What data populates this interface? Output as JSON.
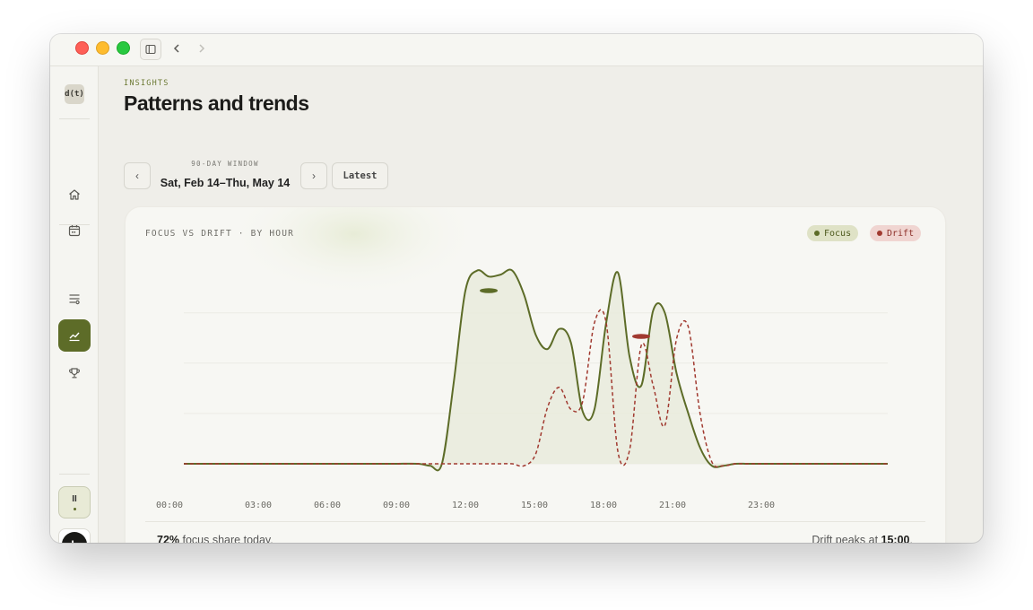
{
  "window": {
    "controls": [
      "close",
      "minimize",
      "zoom"
    ],
    "toolbar_icons": [
      "sidebar-toggle-icon",
      "back-chevron-icon",
      "forward-chevron-icon"
    ]
  },
  "sidebar": {
    "logo": "d(t)",
    "items": [
      {
        "icon": "home-icon",
        "active": false
      },
      {
        "icon": "calendar-icon",
        "active": false
      },
      {
        "icon": "filters-icon",
        "active": false
      },
      {
        "icon": "trend-chart-icon",
        "active": true
      },
      {
        "icon": "trophy-icon",
        "active": false
      }
    ],
    "pause_label": "II",
    "avatar_initial": "L"
  },
  "header": {
    "eyebrow": "INSIGHTS",
    "title": "Patterns and trends",
    "range_caption": "90-DAY WINDOW",
    "range_value": "Sat, Feb 14–Thu, May 14",
    "prev_label": "‹",
    "next_label": "›",
    "latest_label": "Latest"
  },
  "card": {
    "title": "FOCUS VS DRIFT · BY HOUR",
    "legend": [
      {
        "label": "Focus",
        "color": "#5d6c28"
      },
      {
        "label": "Drift",
        "color": "#a13a30"
      }
    ],
    "footer_left_value": "72%",
    "footer_left_text": " focus share today.",
    "footer_right_text": "Drift peaks at ",
    "footer_right_value": "15:00",
    "footer_right_suffix": "."
  },
  "chart_data": {
    "type": "line",
    "title": "FOCUS VS DRIFT · BY HOUR",
    "x_tick_labels": [
      "00:00",
      "03:00",
      "06:00",
      "09:00",
      "12:00",
      "15:00",
      "18:00",
      "21:00",
      "23:00"
    ],
    "x": [
      0,
      1,
      2,
      3,
      4,
      5,
      6,
      7,
      8,
      9,
      10,
      10.5,
      11,
      11.5,
      12,
      12.5,
      13,
      13.5,
      14,
      14.5,
      15,
      15.5,
      16,
      16.5,
      17,
      17.5,
      18,
      18.5,
      19,
      19.5,
      20,
      20.5,
      21,
      21.5,
      22,
      22.5,
      23,
      23.5,
      24,
      24.5,
      25,
      25.5,
      26,
      27,
      28,
      29,
      30
    ],
    "series": [
      {
        "name": "Focus",
        "color": "#5d6c28",
        "style": "solid",
        "values": [
          0,
          0,
          0,
          0,
          0,
          0,
          0,
          0,
          0,
          0,
          0,
          -0.01,
          0,
          0.4,
          0.86,
          0.96,
          0.93,
          0.94,
          0.96,
          0.84,
          0.64,
          0.57,
          0.67,
          0.6,
          0.26,
          0.27,
          0.7,
          0.95,
          0.53,
          0.39,
          0.76,
          0.75,
          0.45,
          0.25,
          0.08,
          -0.01,
          -0.01,
          0,
          0,
          0,
          0,
          0,
          0,
          0,
          0,
          0,
          0
        ]
      },
      {
        "name": "Drift",
        "color": "#a13a30",
        "style": "dashed",
        "values": [
          0,
          0,
          0,
          0,
          0,
          0,
          0,
          0,
          0,
          0,
          0,
          0,
          0,
          0,
          0,
          0,
          0,
          0,
          0,
          -0.01,
          0.05,
          0.28,
          0.38,
          0.27,
          0.31,
          0.7,
          0.7,
          0.06,
          0.07,
          0.59,
          0.39,
          0.19,
          0.62,
          0.68,
          0.25,
          0.01,
          -0.01,
          0,
          0,
          0,
          0,
          0,
          0,
          0,
          0,
          0,
          0
        ]
      }
    ],
    "y_range": [
      0,
      1
    ],
    "grid": true,
    "legend_position": "top-right"
  }
}
